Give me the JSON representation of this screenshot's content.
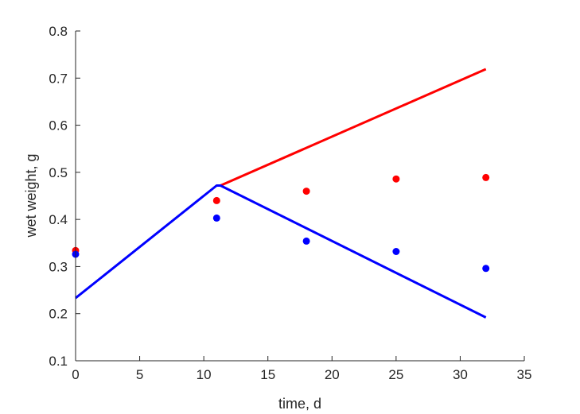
{
  "chart_data": {
    "type": "line",
    "title": "",
    "xlabel": "time, d",
    "ylabel": "wet weight, g",
    "xlim": [
      0,
      35
    ],
    "ylim": [
      0.1,
      0.8
    ],
    "xticks": [
      0,
      5,
      10,
      15,
      20,
      25,
      30,
      35
    ],
    "yticks": [
      0.1,
      0.2,
      0.3,
      0.4,
      0.5,
      0.6,
      0.7,
      0.8
    ],
    "xtick_labels": [
      "0",
      "5",
      "10",
      "15",
      "20",
      "25",
      "30",
      "35"
    ],
    "ytick_labels": [
      "0.1",
      "0.2",
      "0.3",
      "0.4",
      "0.5",
      "0.6",
      "0.7",
      "0.8"
    ],
    "grid": false,
    "legend": "none",
    "lines": [
      {
        "color": "#ff0000",
        "x": [
          11,
          11.3,
          32
        ],
        "y": [
          0.472,
          0.472,
          0.719
        ]
      },
      {
        "color": "#0000ff",
        "x": [
          0,
          11,
          11.3,
          32
        ],
        "y": [
          0.233,
          0.472,
          0.472,
          0.192
        ]
      }
    ],
    "scatter": [
      {
        "color": "#ff0000",
        "x": [
          0,
          11,
          18,
          25,
          32
        ],
        "y": [
          0.334,
          0.44,
          0.46,
          0.486,
          0.489
        ]
      },
      {
        "color": "#0000ff",
        "x": [
          0,
          11,
          18,
          25,
          32
        ],
        "y": [
          0.326,
          0.403,
          0.354,
          0.332,
          0.296
        ]
      }
    ]
  }
}
